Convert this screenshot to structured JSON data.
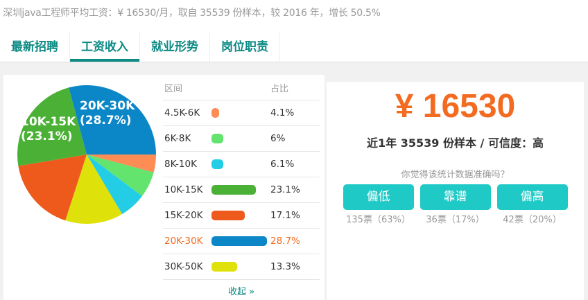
{
  "summary": "深圳java工程师平均工资：¥ 16530/月，取自 35539 份样本，较 2016 年，增长 50.5%",
  "tabs": [
    {
      "label": "最新招聘"
    },
    {
      "label": "工资收入",
      "active": true
    },
    {
      "label": "就业形势"
    },
    {
      "label": "岗位职责"
    }
  ],
  "table": {
    "col_range": "区间",
    "col_ratio": "占比",
    "collapse": "收起 »"
  },
  "chart_data": {
    "type": "pie",
    "slices": [
      {
        "label": "4.5K-6K",
        "value": 4.1,
        "display": "4.1%",
        "color": "#fd8c55"
      },
      {
        "label": "6K-8K",
        "value": 6,
        "display": "6%",
        "color": "#62e46e"
      },
      {
        "label": "8K-10K",
        "value": 6.1,
        "display": "6.1%",
        "color": "#23cde6"
      },
      {
        "label": "10K-15K",
        "value": 23.1,
        "display": "23.1%",
        "color": "#4bb136",
        "pie_label": "10K-15K",
        "pie_pct": "(23.1%)"
      },
      {
        "label": "15K-20K",
        "value": 17.1,
        "display": "17.1%",
        "color": "#ee5a1c"
      },
      {
        "label": "20K-30K",
        "value": 28.7,
        "display": "28.7%",
        "color": "#0b87c8",
        "highlight": true,
        "pie_label": "20K-30K",
        "pie_pct": "(28.7%)"
      },
      {
        "label": "30K-50K",
        "value": 13.3,
        "display": "13.3%",
        "color": "#dfe20a"
      }
    ],
    "pie_order": [
      "4.5K-6K",
      "6K-8K",
      "8K-10K",
      "30K-50K",
      "15K-20K",
      "10K-15K",
      "20K-30K"
    ]
  },
  "salary": {
    "amount": "¥ 16530",
    "sample": "近1年 35539 份样本 / 可信度：高",
    "ask": "你觉得该统计数据准确吗？",
    "votes": [
      {
        "label": "偏低",
        "count": "135票（63%）"
      },
      {
        "label": "靠谱",
        "count": "36票（17%）"
      },
      {
        "label": "偏高",
        "count": "42票（20%）"
      }
    ]
  },
  "colors": {
    "accent": "#0c8a84",
    "orange": "#f26b21",
    "button": "#1ec9c6"
  }
}
